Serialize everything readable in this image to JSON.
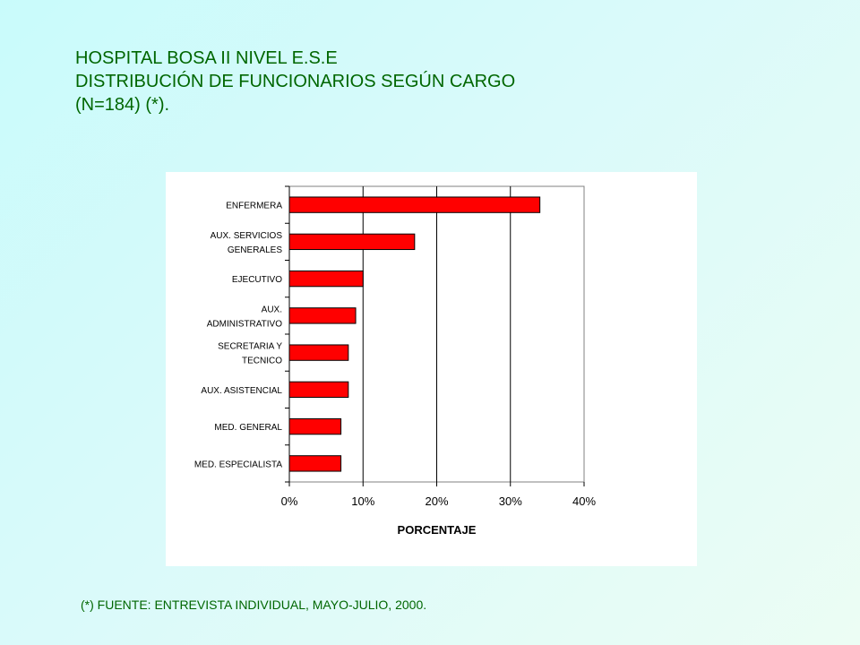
{
  "header": {
    "line1": "HOSPITAL BOSA II NIVEL E.S.E",
    "line2": "DISTRIBUCIÓN DE FUNCIONARIOS SEGÚN CARGO",
    "line3": "(N=184) (*)."
  },
  "footnote": "(*) FUENTE: ENTREVISTA INDIVIDUAL, MAYO-JULIO, 2000.",
  "colors": {
    "title_text": "#006600",
    "bar_fill": "#ff0000",
    "bar_stroke": "#000000"
  },
  "chart_data": {
    "type": "bar",
    "orientation": "horizontal",
    "categories": [
      [
        "ENFERMERA"
      ],
      [
        "AUX. SERVICIOS",
        "GENERALES"
      ],
      [
        "EJECUTIVO"
      ],
      [
        "AUX.",
        "ADMINISTRATIVO"
      ],
      [
        "SECRETARIA Y",
        "TECNICO"
      ],
      [
        "AUX. ASISTENCIAL"
      ],
      [
        "MED. GENERAL"
      ],
      [
        "MED. ESPECIALISTA"
      ]
    ],
    "values": [
      34,
      17,
      10,
      9,
      8,
      8,
      7,
      7
    ],
    "xlabel": "PORCENTAJE",
    "xlim": [
      0,
      40
    ],
    "xticks": [
      0,
      10,
      20,
      30,
      40
    ],
    "xtick_labels": [
      "0%",
      "10%",
      "20%",
      "30%",
      "40%"
    ],
    "grid": "vertical",
    "legend": "none"
  }
}
